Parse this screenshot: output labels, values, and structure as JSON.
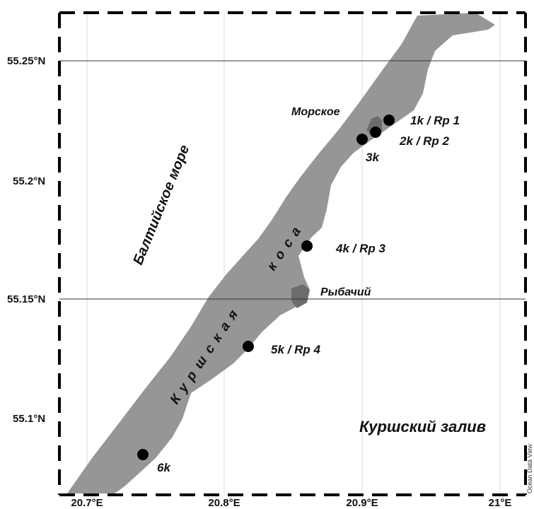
{
  "map": {
    "latitude_ticks": [
      "55.25°N",
      "55.2°N",
      "55.15°N",
      "55.1°N"
    ],
    "longitude_ticks": [
      "20.7°E",
      "20.8°E",
      "20.9°E",
      "21°E"
    ],
    "labels": {
      "sea": "Балтийское море",
      "lagoon": "Куршский залив",
      "spit_part1": "Куршская",
      "spit_part2": "коса",
      "town_morskoe": "Морское",
      "town_rybachiy": "Рыбачий"
    },
    "stations": [
      {
        "label": "1k / Rp 1",
        "lon": 20.92,
        "lat": 55.225
      },
      {
        "label": "2k / Rp 2",
        "lon": 20.91,
        "lat": 55.22
      },
      {
        "label": "3k",
        "lon": 20.9,
        "lat": 55.217
      },
      {
        "label": "4k / Rp 3",
        "lon": 20.86,
        "lat": 55.172
      },
      {
        "label": "5k / Rp 4",
        "lon": 20.815,
        "lat": 55.13
      },
      {
        "label": "6k",
        "lon": 20.74,
        "lat": 55.085
      }
    ],
    "credit": "Ocean Data View",
    "colors": {
      "land": "#969696",
      "settlement": "#6c6c6c",
      "station": "#000000",
      "grid": "#d8d8d8"
    }
  }
}
